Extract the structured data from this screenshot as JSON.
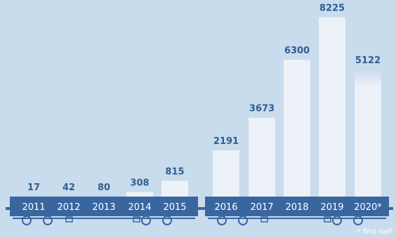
{
  "chart_data": {
    "type": "bar",
    "categories": [
      "2011",
      "2012",
      "2013",
      "2014",
      "2015",
      "2016",
      "2017",
      "2018",
      "2019",
      "2020*"
    ],
    "values": [
      17,
      42,
      80,
      308,
      815,
      2191,
      3673,
      6300,
      8225,
      5122
    ],
    "value_labels": [
      "17",
      "42",
      "80",
      "308",
      "815",
      "2191",
      "3673",
      "6300",
      "8225",
      "5122"
    ],
    "title": "",
    "xlabel": "",
    "ylabel": "",
    "ylim": [
      0,
      8500
    ],
    "grid": false,
    "footnote": "* first half",
    "colors": {
      "background": "#c9dced",
      "bar": "#edf1f8",
      "label": "#2e5e93",
      "wagon": "#3a66a0",
      "tick_text": "#ffffff"
    }
  }
}
